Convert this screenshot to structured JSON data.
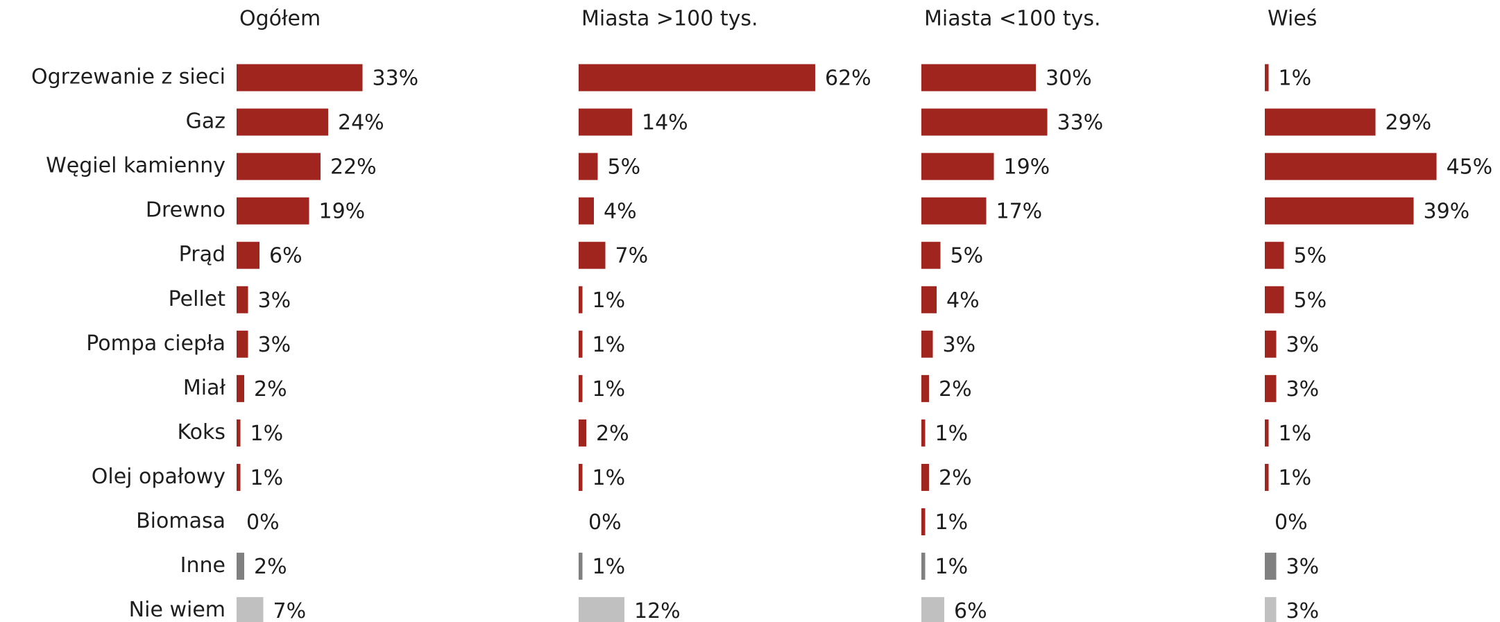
{
  "chart_data": {
    "type": "bar",
    "categories": [
      "Ogrzewanie z sieci",
      "Gaz",
      "Węgiel kamienny",
      "Drewno",
      "Prąd",
      "Pellet",
      "Pompa ciepła",
      "Miał",
      "Koks",
      "Olej opałowy",
      "Biomasa",
      "Inne",
      "Nie wiem"
    ],
    "colors": [
      "#a0251e",
      "#a0251e",
      "#a0251e",
      "#a0251e",
      "#a0251e",
      "#a0251e",
      "#a0251e",
      "#a0251e",
      "#a0251e",
      "#a0251e",
      "#a0251e",
      "#808080",
      "#c0c0c0"
    ],
    "series": [
      {
        "name": "Ogółem",
        "values": [
          33,
          24,
          22,
          19,
          6,
          3,
          3,
          2,
          1,
          1,
          0,
          2,
          7
        ],
        "value_labels": [
          "33%",
          "24%",
          "22%",
          "19%",
          "6%",
          "3%",
          "3%",
          "2%",
          "1%",
          "1%",
          "0%",
          "2%",
          "7%"
        ]
      },
      {
        "name": "Miasta >100 tys.",
        "values": [
          62,
          14,
          5,
          4,
          7,
          1,
          1,
          1,
          2,
          1,
          0,
          1,
          12
        ],
        "value_labels": [
          "62%",
          "14%",
          "5%",
          "4%",
          "7%",
          "1%",
          "1%",
          "1%",
          "2%",
          "1%",
          "0%",
          "1%",
          "12%"
        ]
      },
      {
        "name": "Miasta <100 tys.",
        "values": [
          30,
          33,
          19,
          17,
          5,
          4,
          3,
          2,
          1,
          2,
          1,
          1,
          6
        ],
        "value_labels": [
          "30%",
          "33%",
          "19%",
          "17%",
          "5%",
          "4%",
          "3%",
          "2%",
          "1%",
          "2%",
          "1%",
          "1%",
          "6%"
        ]
      },
      {
        "name": "Wieś",
        "values": [
          1,
          29,
          45,
          39,
          5,
          5,
          3,
          3,
          1,
          1,
          0,
          3,
          3
        ],
        "value_labels": [
          "1%",
          "29%",
          "45%",
          "39%",
          "5%",
          "5%",
          "3%",
          "3%",
          "1%",
          "1%",
          "0%",
          "3%",
          "3%"
        ]
      }
    ]
  }
}
